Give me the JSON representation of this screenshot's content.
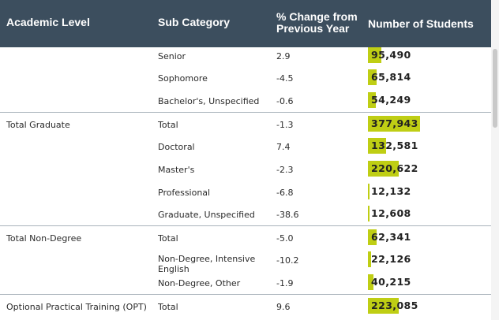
{
  "header": {
    "academic_level": "Academic Level",
    "sub_category": "Sub Category",
    "pct_change_line1": "% Change from",
    "pct_change_line2": "Previous Year",
    "number_of_students": "Number of Students"
  },
  "rows": [
    {
      "level": "",
      "sub": "Senior",
      "pct": "2.9",
      "students": "95,490",
      "bar_fraction": 0.253
    },
    {
      "level": "",
      "sub": "Sophomore",
      "pct": "-4.5",
      "students": "65,814",
      "bar_fraction": 0.174
    },
    {
      "level": "",
      "sub": "Bachelor's, Unspecified",
      "pct": "-0.6",
      "students": "54,249",
      "bar_fraction": 0.144
    },
    {
      "level": "Total Graduate",
      "sub": "Total",
      "pct": "-1.3",
      "students": "377,943",
      "bar_fraction": 1.0
    },
    {
      "level": "",
      "sub": "Doctoral",
      "pct": "7.4",
      "students": "132,581",
      "bar_fraction": 0.351
    },
    {
      "level": "",
      "sub": "Master's",
      "pct": "-2.3",
      "students": "220,622",
      "bar_fraction": 0.584
    },
    {
      "level": "",
      "sub": "Professional",
      "pct": "-6.8",
      "students": "12,132",
      "bar_fraction": 0.032
    },
    {
      "level": "",
      "sub": "Graduate, Unspecified",
      "pct": "-38.6",
      "students": "12,608",
      "bar_fraction": 0.033
    },
    {
      "level": "Total Non-Degree",
      "sub": "Total",
      "pct": "-5.0",
      "students": "62,341",
      "bar_fraction": 0.165
    },
    {
      "level": "",
      "sub": "Non-Degree, Intensive English",
      "pct": "-10.2",
      "students": "22,126",
      "bar_fraction": 0.059
    },
    {
      "level": "",
      "sub": "Non-Degree, Other",
      "pct": "-1.9",
      "students": "40,215",
      "bar_fraction": 0.106
    },
    {
      "level": "Optional Practical Training (OPT)",
      "sub": "Total",
      "pct": "9.6",
      "students": "223,085",
      "bar_fraction": 0.59
    }
  ],
  "colors": {
    "header_bg": "#3c4e5e",
    "bar": "#bfce14",
    "divider": "#a9b3bb"
  }
}
